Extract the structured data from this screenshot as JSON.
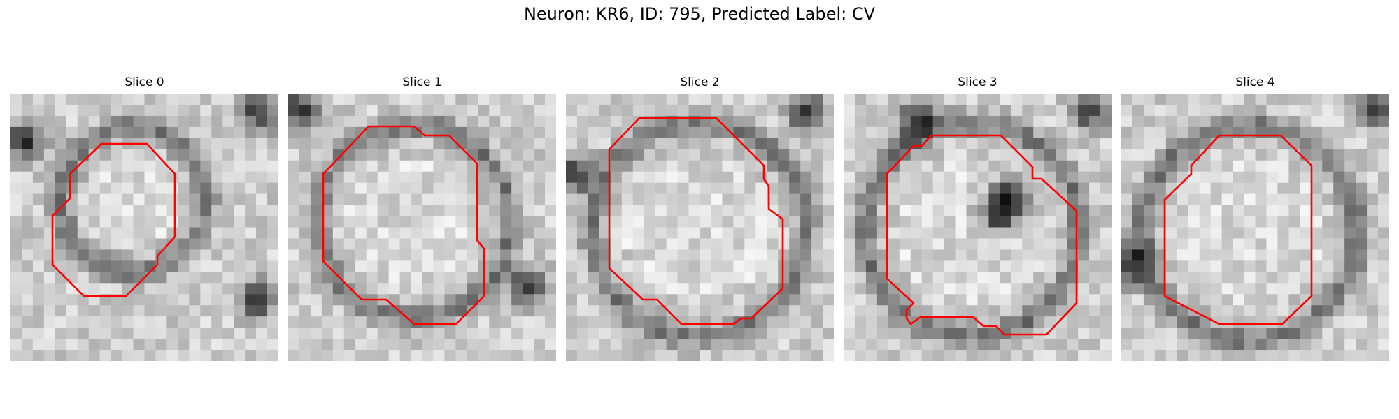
{
  "figure": {
    "title": "Neuron: KR6, ID: 795, Predicted Label: CV"
  },
  "panels": [
    {
      "title": "Slice 0"
    },
    {
      "title": "Slice 1"
    },
    {
      "title": "Slice 2"
    },
    {
      "title": "Slice 3"
    },
    {
      "title": "Slice 4"
    }
  ],
  "colors": {
    "contour": "#ff0000",
    "background": "#ffffff"
  }
}
